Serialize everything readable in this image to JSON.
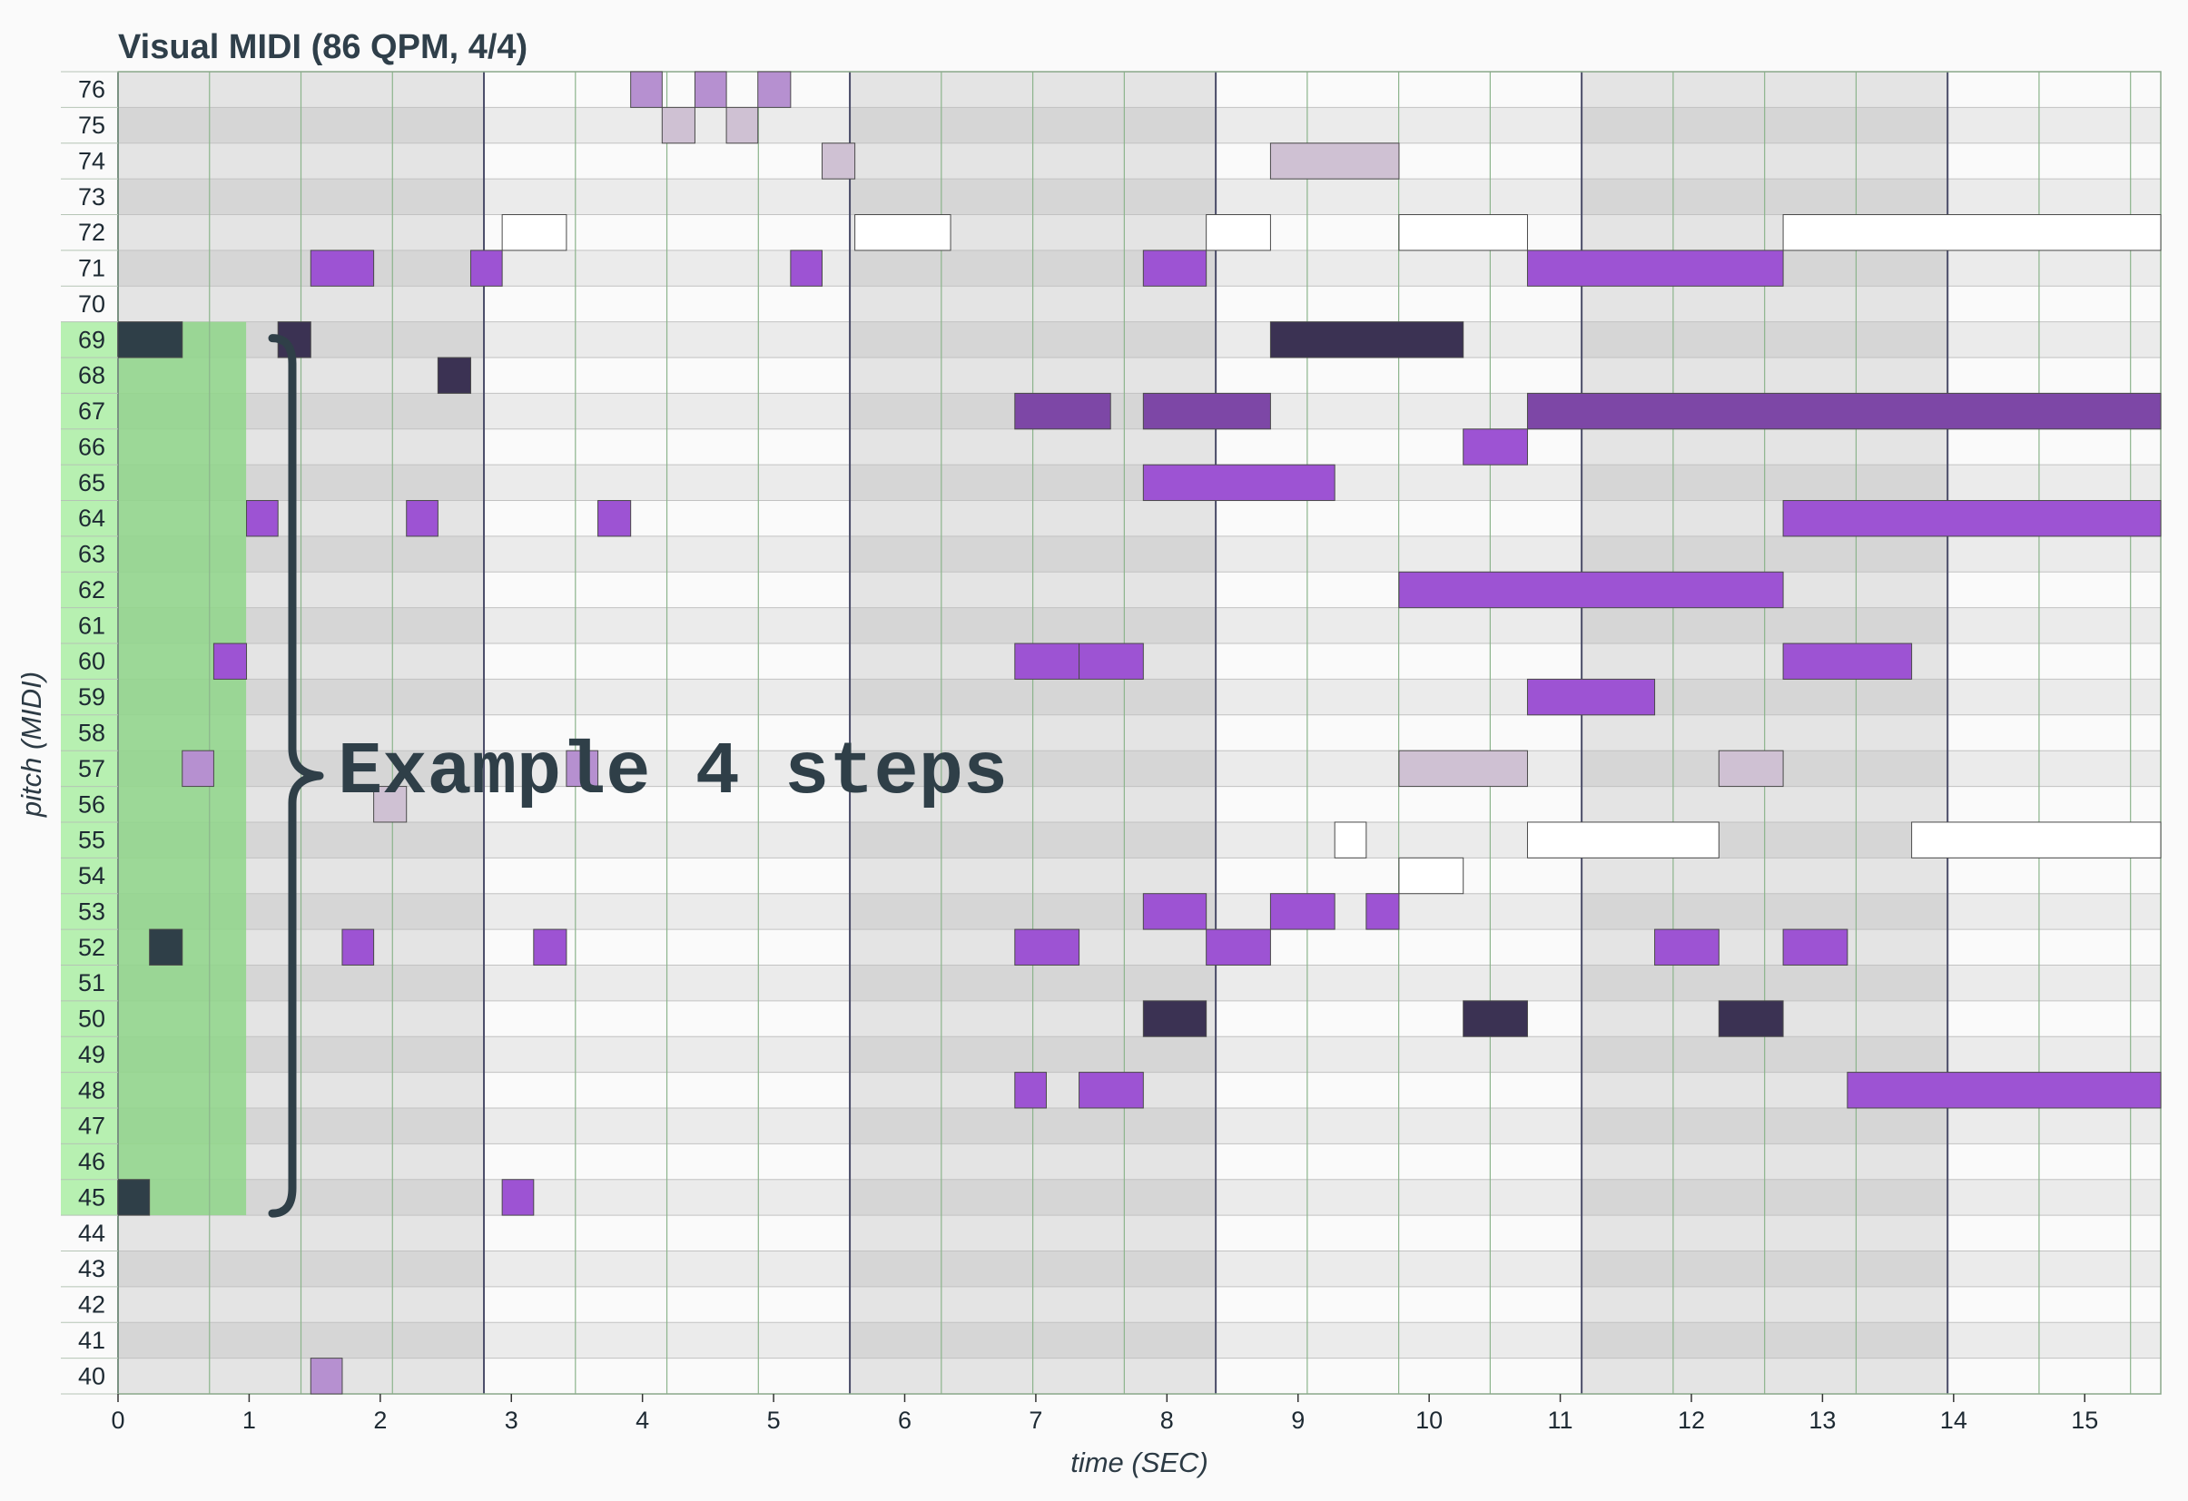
{
  "chart_data": {
    "type": "piano-roll",
    "title": "Visual MIDI (86 QPM, 4/4)",
    "xlabel": "time (SEC)",
    "ylabel": "pitch (MIDI)",
    "xlim": [
      0,
      15.58
    ],
    "ylim": [
      40,
      76
    ],
    "x_ticks": [
      0,
      1,
      2,
      3,
      4,
      5,
      6,
      7,
      8,
      9,
      10,
      11,
      12,
      13,
      14,
      15
    ],
    "y_ticks": [
      40,
      41,
      42,
      43,
      44,
      45,
      46,
      47,
      48,
      49,
      50,
      51,
      52,
      53,
      54,
      55,
      56,
      57,
      58,
      59,
      60,
      61,
      62,
      63,
      64,
      65,
      66,
      67,
      68,
      69,
      70,
      71,
      72,
      73,
      74,
      75,
      76
    ],
    "beat_seconds": 0.6977,
    "bar_seconds": 2.7907,
    "highlight": {
      "label": "Example 4 steps",
      "x": [
        0,
        0.977
      ],
      "pitch": [
        45,
        69
      ]
    },
    "colors": {
      "highlight": "#b7f0b1",
      "highlight_column": "#8fd68a",
      "bar_line": "#4a4c68",
      "beat_line": "#8cb48c",
      "row_dark": "#d6d6d6",
      "row_light": "#e4e4e4",
      "row_dark_alt": "#ebebeb",
      "row_light_alt": "#fafafa",
      "annotation": "#2f3f48"
    },
    "notes": [
      {
        "pitch": 69,
        "start": 0.0,
        "end": 0.49,
        "velocity": "very-high"
      },
      {
        "pitch": 45,
        "start": 0.0,
        "end": 0.24,
        "velocity": "very-high"
      },
      {
        "pitch": 52,
        "start": 0.24,
        "end": 0.49,
        "velocity": "very-high"
      },
      {
        "pitch": 57,
        "start": 0.49,
        "end": 0.73,
        "velocity": "low"
      },
      {
        "pitch": 60,
        "start": 0.73,
        "end": 0.98,
        "velocity": "medium"
      },
      {
        "pitch": 64,
        "start": 0.98,
        "end": 1.22,
        "velocity": "medium"
      },
      {
        "pitch": 69,
        "start": 1.22,
        "end": 1.47,
        "velocity": "very-high"
      },
      {
        "pitch": 71,
        "start": 1.47,
        "end": 1.95,
        "velocity": "medium"
      },
      {
        "pitch": 40,
        "start": 1.47,
        "end": 1.71,
        "velocity": "low"
      },
      {
        "pitch": 52,
        "start": 1.71,
        "end": 1.95,
        "velocity": "medium"
      },
      {
        "pitch": 56,
        "start": 1.95,
        "end": 2.2,
        "velocity": "very-low"
      },
      {
        "pitch": 64,
        "start": 2.2,
        "end": 2.44,
        "velocity": "medium"
      },
      {
        "pitch": 68,
        "start": 2.44,
        "end": 2.69,
        "velocity": "very-high"
      },
      {
        "pitch": 71,
        "start": 2.69,
        "end": 2.93,
        "velocity": "medium"
      },
      {
        "pitch": 45,
        "start": 2.93,
        "end": 3.17,
        "velocity": "medium"
      },
      {
        "pitch": 72,
        "start": 2.93,
        "end": 3.42,
        "velocity": "none"
      },
      {
        "pitch": 52,
        "start": 3.17,
        "end": 3.42,
        "velocity": "medium"
      },
      {
        "pitch": 57,
        "start": 3.42,
        "end": 3.66,
        "velocity": "low"
      },
      {
        "pitch": 64,
        "start": 3.66,
        "end": 3.91,
        "velocity": "medium"
      },
      {
        "pitch": 76,
        "start": 3.91,
        "end": 4.15,
        "velocity": "low"
      },
      {
        "pitch": 75,
        "start": 4.15,
        "end": 4.4,
        "velocity": "very-low"
      },
      {
        "pitch": 76,
        "start": 4.4,
        "end": 4.64,
        "velocity": "low"
      },
      {
        "pitch": 75,
        "start": 4.64,
        "end": 4.88,
        "velocity": "very-low"
      },
      {
        "pitch": 76,
        "start": 4.88,
        "end": 5.13,
        "velocity": "low"
      },
      {
        "pitch": 71,
        "start": 5.13,
        "end": 5.37,
        "velocity": "medium"
      },
      {
        "pitch": 74,
        "start": 5.37,
        "end": 5.62,
        "velocity": "very-low"
      },
      {
        "pitch": 72,
        "start": 5.62,
        "end": 6.35,
        "velocity": "none"
      },
      {
        "pitch": 67,
        "start": 6.84,
        "end": 7.57,
        "velocity": "high"
      },
      {
        "pitch": 60,
        "start": 6.84,
        "end": 7.33,
        "velocity": "medium"
      },
      {
        "pitch": 52,
        "start": 6.84,
        "end": 7.33,
        "velocity": "medium"
      },
      {
        "pitch": 48,
        "start": 6.84,
        "end": 7.08,
        "velocity": "medium"
      },
      {
        "pitch": 60,
        "start": 7.33,
        "end": 7.82,
        "velocity": "medium"
      },
      {
        "pitch": 48,
        "start": 7.33,
        "end": 7.82,
        "velocity": "medium"
      },
      {
        "pitch": 71,
        "start": 7.82,
        "end": 8.3,
        "velocity": "medium"
      },
      {
        "pitch": 67,
        "start": 7.82,
        "end": 8.79,
        "velocity": "high"
      },
      {
        "pitch": 65,
        "start": 7.82,
        "end": 9.28,
        "velocity": "medium"
      },
      {
        "pitch": 53,
        "start": 7.82,
        "end": 8.3,
        "velocity": "medium"
      },
      {
        "pitch": 50,
        "start": 7.82,
        "end": 8.3,
        "velocity": "very-high"
      },
      {
        "pitch": 72,
        "start": 8.3,
        "end": 8.79,
        "velocity": "none"
      },
      {
        "pitch": 52,
        "start": 8.3,
        "end": 8.79,
        "velocity": "medium"
      },
      {
        "pitch": 74,
        "start": 8.79,
        "end": 9.77,
        "velocity": "very-low"
      },
      {
        "pitch": 69,
        "start": 8.79,
        "end": 10.26,
        "velocity": "very-high"
      },
      {
        "pitch": 53,
        "start": 8.79,
        "end": 9.28,
        "velocity": "medium"
      },
      {
        "pitch": 55,
        "start": 9.28,
        "end": 9.52,
        "velocity": "none"
      },
      {
        "pitch": 53,
        "start": 9.52,
        "end": 9.77,
        "velocity": "medium"
      },
      {
        "pitch": 72,
        "start": 9.77,
        "end": 10.75,
        "velocity": "none"
      },
      {
        "pitch": 62,
        "start": 9.77,
        "end": 12.7,
        "velocity": "medium"
      },
      {
        "pitch": 57,
        "start": 9.77,
        "end": 10.75,
        "velocity": "very-low"
      },
      {
        "pitch": 54,
        "start": 9.77,
        "end": 10.26,
        "velocity": "none"
      },
      {
        "pitch": 66,
        "start": 10.26,
        "end": 10.75,
        "velocity": "medium"
      },
      {
        "pitch": 50,
        "start": 10.26,
        "end": 10.75,
        "velocity": "very-high"
      },
      {
        "pitch": 71,
        "start": 10.75,
        "end": 12.7,
        "velocity": "medium"
      },
      {
        "pitch": 67,
        "start": 10.75,
        "end": 15.58,
        "velocity": "high"
      },
      {
        "pitch": 59,
        "start": 10.75,
        "end": 11.72,
        "velocity": "medium"
      },
      {
        "pitch": 55,
        "start": 10.75,
        "end": 12.21,
        "velocity": "none"
      },
      {
        "pitch": 52,
        "start": 11.72,
        "end": 12.21,
        "velocity": "medium"
      },
      {
        "pitch": 57,
        "start": 12.21,
        "end": 12.7,
        "velocity": "very-low"
      },
      {
        "pitch": 50,
        "start": 12.21,
        "end": 12.7,
        "velocity": "very-high"
      },
      {
        "pitch": 72,
        "start": 12.7,
        "end": 15.58,
        "velocity": "none"
      },
      {
        "pitch": 64,
        "start": 12.7,
        "end": 15.58,
        "velocity": "medium"
      },
      {
        "pitch": 60,
        "start": 12.7,
        "end": 13.68,
        "velocity": "medium"
      },
      {
        "pitch": 52,
        "start": 12.7,
        "end": 13.19,
        "velocity": "medium"
      },
      {
        "pitch": 48,
        "start": 13.19,
        "end": 15.58,
        "velocity": "medium"
      },
      {
        "pitch": 55,
        "start": 13.68,
        "end": 15.58,
        "velocity": "none"
      }
    ]
  }
}
